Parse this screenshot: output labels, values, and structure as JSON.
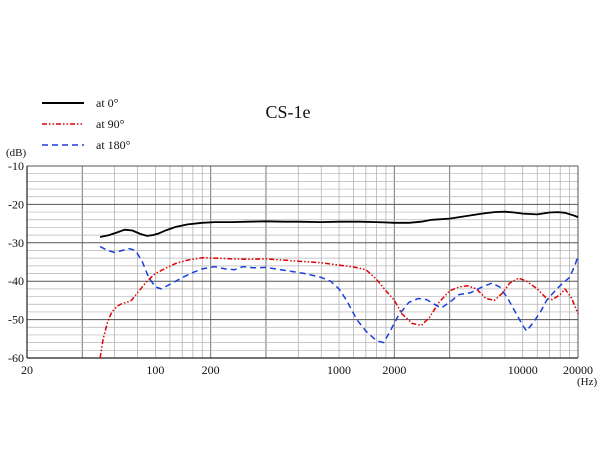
{
  "chart_data": {
    "type": "line",
    "title": "CS-1e",
    "y_unit": "(dB)",
    "x_unit": "(Hz)",
    "x_scale": "log",
    "xlim": [
      20,
      20000
    ],
    "ylim": [
      -60,
      -10
    ],
    "grid": true,
    "legend_position": "top-left",
    "x_tick_labels": [
      "20",
      "100",
      "200",
      "1000",
      "2000",
      "10000",
      "20000"
    ],
    "y_tick_labels": [
      "-10",
      "-20",
      "-30",
      "-40",
      "-50",
      "-60"
    ],
    "series": [
      {
        "name": "at 0°",
        "color": "#000000",
        "dash": "solid",
        "points": [
          [
            50,
            -28.5
          ],
          [
            56,
            -28
          ],
          [
            62,
            -27.3
          ],
          [
            68,
            -26.6
          ],
          [
            75,
            -26.8
          ],
          [
            83,
            -27.7
          ],
          [
            90,
            -28.2
          ],
          [
            97,
            -28.0
          ],
          [
            105,
            -27.5
          ],
          [
            115,
            -26.7
          ],
          [
            130,
            -25.8
          ],
          [
            150,
            -25.2
          ],
          [
            180,
            -24.8
          ],
          [
            210,
            -24.6
          ],
          [
            260,
            -24.6
          ],
          [
            320,
            -24.5
          ],
          [
            400,
            -24.4
          ],
          [
            500,
            -24.5
          ],
          [
            600,
            -24.5
          ],
          [
            800,
            -24.6
          ],
          [
            1000,
            -24.5
          ],
          [
            1300,
            -24.5
          ],
          [
            1600,
            -24.6
          ],
          [
            2000,
            -24.8
          ],
          [
            2400,
            -24.8
          ],
          [
            2800,
            -24.5
          ],
          [
            3200,
            -24.0
          ],
          [
            4000,
            -23.7
          ],
          [
            5000,
            -23.0
          ],
          [
            6000,
            -22.4
          ],
          [
            7000,
            -22.0
          ],
          [
            8000,
            -21.9
          ],
          [
            9000,
            -22.1
          ],
          [
            10000,
            -22.4
          ],
          [
            12000,
            -22.6
          ],
          [
            14000,
            -22.1
          ],
          [
            15500,
            -22.0
          ],
          [
            17000,
            -22.2
          ],
          [
            19000,
            -22.9
          ],
          [
            20000,
            -23.3
          ]
        ]
      },
      {
        "name": "at 90°",
        "color": "#e00000",
        "dash": "dashdot",
        "points": [
          [
            50,
            -60
          ],
          [
            52,
            -55
          ],
          [
            55,
            -50.5
          ],
          [
            58,
            -48
          ],
          [
            62,
            -46.5
          ],
          [
            66,
            -45.8
          ],
          [
            70,
            -45.5
          ],
          [
            74,
            -45.0
          ],
          [
            80,
            -43.0
          ],
          [
            90,
            -40.0
          ],
          [
            100,
            -38.0
          ],
          [
            115,
            -36.5
          ],
          [
            130,
            -35.3
          ],
          [
            150,
            -34.5
          ],
          [
            180,
            -33.9
          ],
          [
            220,
            -34.0
          ],
          [
            260,
            -34.2
          ],
          [
            330,
            -34.3
          ],
          [
            400,
            -34.2
          ],
          [
            500,
            -34.5
          ],
          [
            600,
            -34.8
          ],
          [
            700,
            -35.0
          ],
          [
            800,
            -35.2
          ],
          [
            1000,
            -35.8
          ],
          [
            1200,
            -36.3
          ],
          [
            1400,
            -37.0
          ],
          [
            1600,
            -39.5
          ],
          [
            1800,
            -42.5
          ],
          [
            2000,
            -45.0
          ],
          [
            2200,
            -48.5
          ],
          [
            2500,
            -51.0
          ],
          [
            2800,
            -51.5
          ],
          [
            3100,
            -49.5
          ],
          [
            3500,
            -45.5
          ],
          [
            4000,
            -42.5
          ],
          [
            4500,
            -41.5
          ],
          [
            5000,
            -41.2
          ],
          [
            5600,
            -42.0
          ],
          [
            6300,
            -44.5
          ],
          [
            7000,
            -45.0
          ],
          [
            7800,
            -43.0
          ],
          [
            8500,
            -40.5
          ],
          [
            9500,
            -39.2
          ],
          [
            10500,
            -40.0
          ],
          [
            12000,
            -42.0
          ],
          [
            13500,
            -44.5
          ],
          [
            14500,
            -44.8
          ],
          [
            16000,
            -43.5
          ],
          [
            17000,
            -42.0
          ],
          [
            18500,
            -44.5
          ],
          [
            20000,
            -48.5
          ]
        ]
      },
      {
        "name": "at 180°",
        "color": "#1a3fe0",
        "dash": "dashed",
        "points": [
          [
            50,
            -31.0
          ],
          [
            55,
            -32.0
          ],
          [
            60,
            -32.5
          ],
          [
            66,
            -32.0
          ],
          [
            72,
            -31.5
          ],
          [
            78,
            -32.0
          ],
          [
            85,
            -35.0
          ],
          [
            92,
            -39.0
          ],
          [
            100,
            -41.5
          ],
          [
            108,
            -42.0
          ],
          [
            118,
            -41.0
          ],
          [
            135,
            -39.5
          ],
          [
            155,
            -38.0
          ],
          [
            180,
            -36.8
          ],
          [
            210,
            -36.2
          ],
          [
            240,
            -36.8
          ],
          [
            270,
            -37.0
          ],
          [
            300,
            -36.2
          ],
          [
            340,
            -36.5
          ],
          [
            400,
            -36.4
          ],
          [
            480,
            -37.0
          ],
          [
            560,
            -37.5
          ],
          [
            650,
            -38.0
          ],
          [
            800,
            -39.0
          ],
          [
            900,
            -40.0
          ],
          [
            1000,
            -42.0
          ],
          [
            1100,
            -45.0
          ],
          [
            1250,
            -50.0
          ],
          [
            1400,
            -53.0
          ],
          [
            1600,
            -55.5
          ],
          [
            1750,
            -56.0
          ],
          [
            1900,
            -53.0
          ],
          [
            2100,
            -49.0
          ],
          [
            2400,
            -45.5
          ],
          [
            2700,
            -44.5
          ],
          [
            3000,
            -44.8
          ],
          [
            3300,
            -46.0
          ],
          [
            3600,
            -47.0
          ],
          [
            4000,
            -45.5
          ],
          [
            4500,
            -43.5
          ],
          [
            5200,
            -43.0
          ],
          [
            6000,
            -41.5
          ],
          [
            6800,
            -40.5
          ],
          [
            7500,
            -41.5
          ],
          [
            8300,
            -44.5
          ],
          [
            9100,
            -48.0
          ],
          [
            10000,
            -51.5
          ],
          [
            10500,
            -53.0
          ],
          [
            11500,
            -50.5
          ],
          [
            12500,
            -48.0
          ],
          [
            13500,
            -45.0
          ],
          [
            15000,
            -42.5
          ],
          [
            16500,
            -40.5
          ],
          [
            18000,
            -39.0
          ],
          [
            19200,
            -36.0
          ],
          [
            20000,
            -33.5
          ]
        ]
      }
    ]
  }
}
